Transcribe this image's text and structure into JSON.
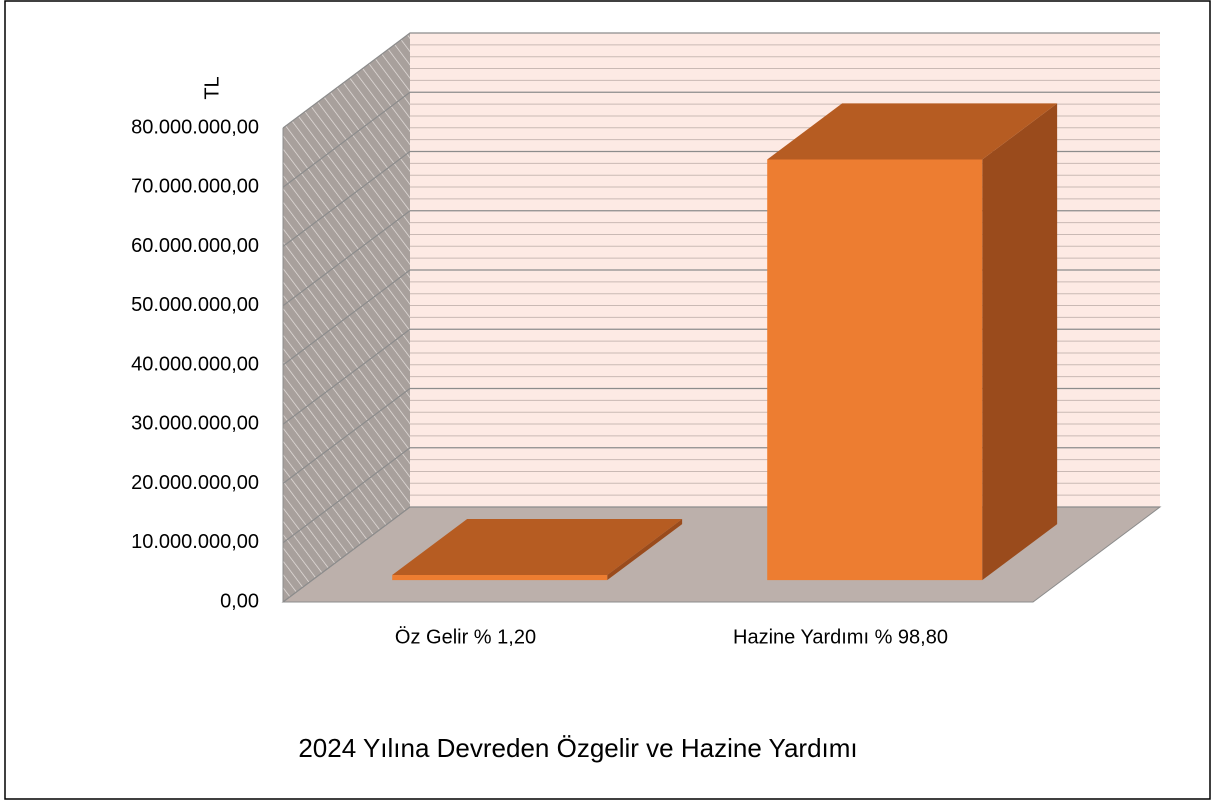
{
  "chart_data": {
    "type": "bar3d",
    "title": "2024 Yılına Devreden Özgelir ve Hazine Yardımı",
    "y_label": "TL",
    "categories": [
      "Öz Gelir % 1,20",
      "Hazine Yardımı % 98,80"
    ],
    "values": [
      862000,
      71000000
    ],
    "color": "#ed7d31",
    "ylim": [
      0,
      80000000
    ],
    "yticks": [
      {
        "value": 0,
        "label": "0,00"
      },
      {
        "value": 10000000,
        "label": "10.000.000,00"
      },
      {
        "value": 20000000,
        "label": "20.000.000,00"
      },
      {
        "value": 30000000,
        "label": "30.000.000,00"
      },
      {
        "value": 40000000,
        "label": "40.000.000,00"
      },
      {
        "value": 50000000,
        "label": "50.000.000,00"
      },
      {
        "value": 60000000,
        "label": "60.000.000,00"
      },
      {
        "value": 70000000,
        "label": "70.000.000,00"
      },
      {
        "value": 80000000,
        "label": "80.000.000,00"
      }
    ],
    "grid": true
  }
}
